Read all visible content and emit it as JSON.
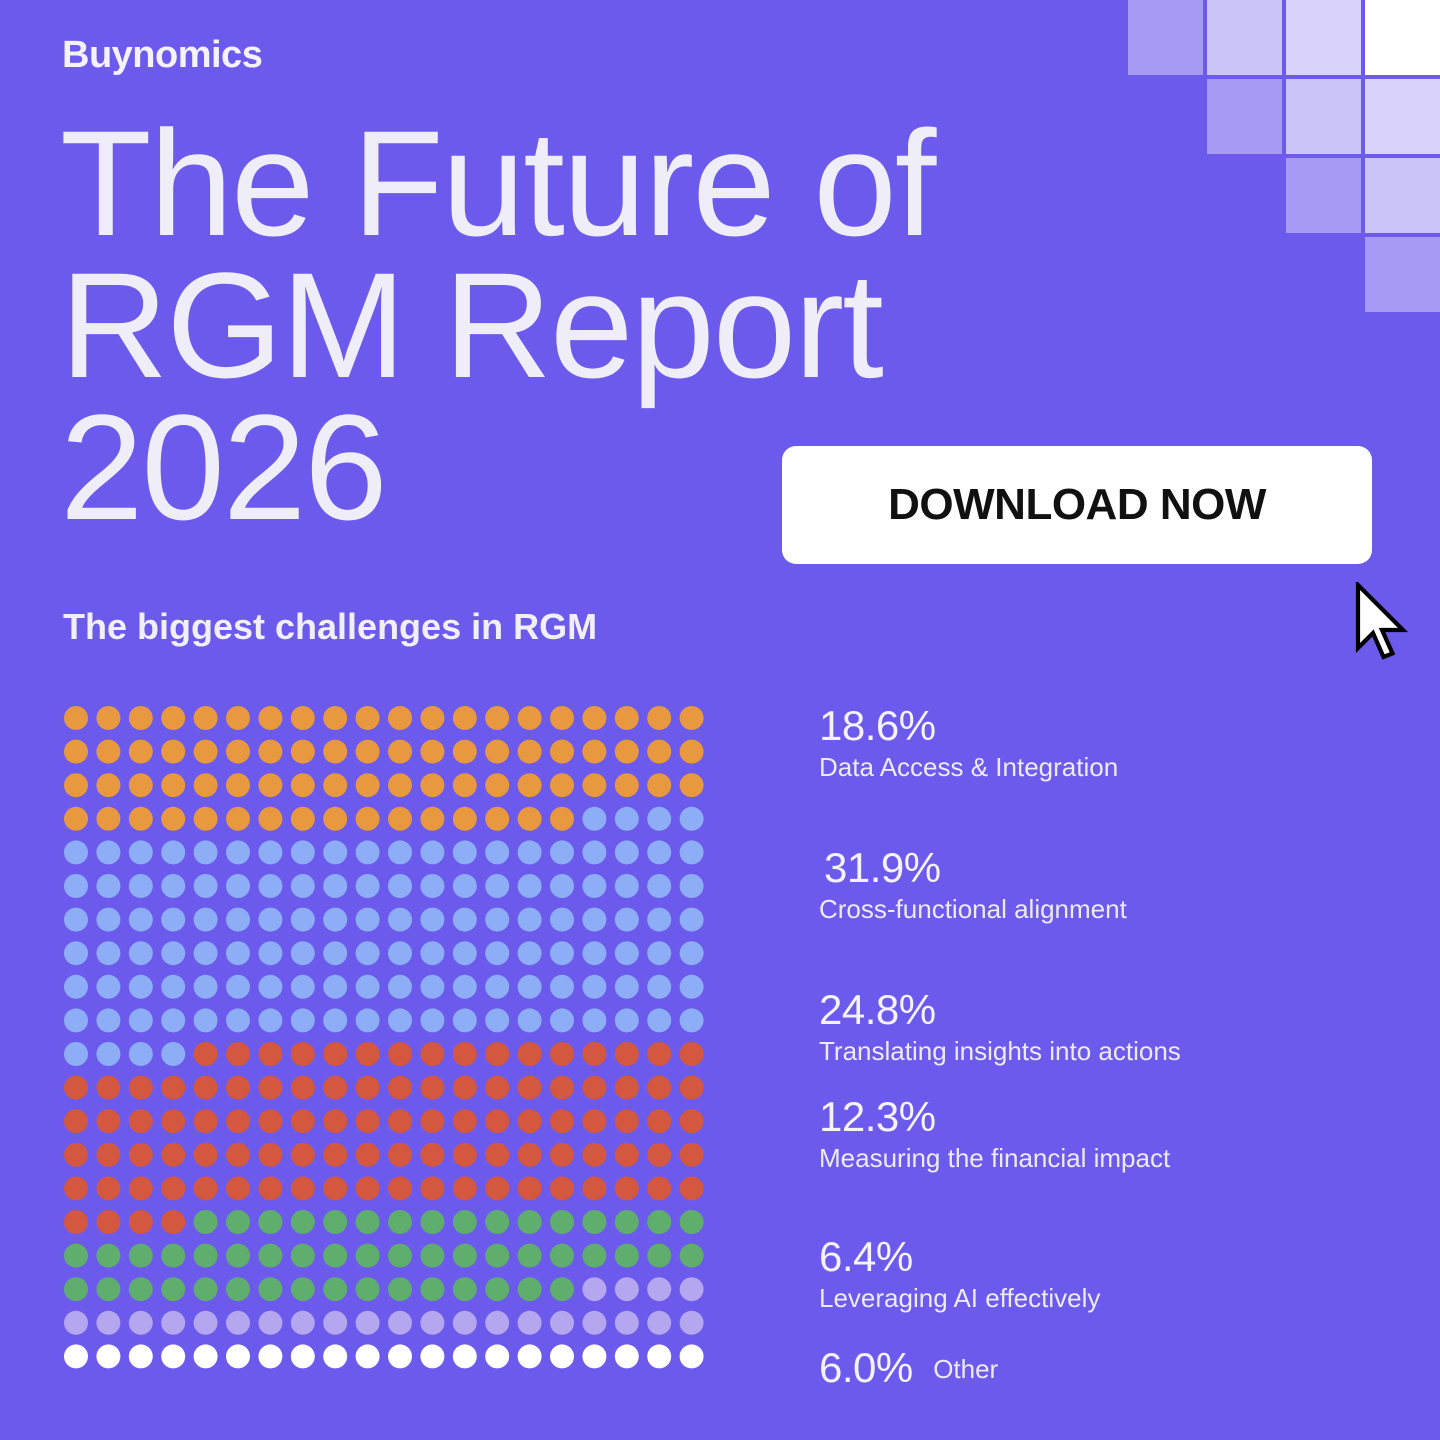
{
  "brand": "Buynomics",
  "title_lines": [
    "The Future of",
    "RGM Report",
    "2026"
  ],
  "cta_label": "DOWNLOAD NOW",
  "colors": {
    "background": "#6c5aec",
    "data_access": "#e8983e",
    "cross_functional": "#8daef6",
    "translating": "#d4573f",
    "measuring": "#5fae6e",
    "ai": "#b5a6f0",
    "other": "#ffffff",
    "tiles": [
      "#a59af4",
      "#cbc4f9",
      "#d9d3fb",
      "#ffffff"
    ]
  },
  "icons": [
    "mouse-cursor-icon"
  ],
  "chart_data": {
    "type": "waffle",
    "title": "The biggest challenges in RGM",
    "grid": {
      "rows": 20,
      "columns": 20
    },
    "series": [
      {
        "name": "Data Access & Integration",
        "display": "18.6%",
        "value": 18.6,
        "dots": 76,
        "color": "#e8983e"
      },
      {
        "name": "Cross-functional alignment",
        "display": "31.9%",
        "value": 31.9,
        "dots": 128,
        "color": "#8daef6"
      },
      {
        "name": "Translating insights into actions",
        "display": "24.8%",
        "value": 24.8,
        "dots": 100,
        "color": "#d4573f"
      },
      {
        "name": "Measuring the financial impact",
        "display": "12.3%",
        "value": 12.3,
        "dots": 52,
        "color": "#5fae6e"
      },
      {
        "name": "Leveraging AI effectively",
        "display": "6.4%",
        "value": 6.4,
        "dots": 24,
        "color": "#b5a6f0"
      },
      {
        "name": "Other",
        "display": "6.0%",
        "value": 6.0,
        "dots": 24,
        "color": "#ffffff"
      }
    ]
  }
}
